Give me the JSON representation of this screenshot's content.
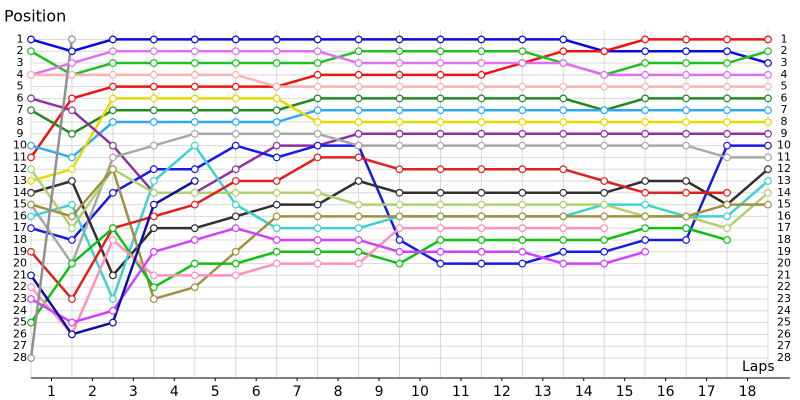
{
  "chart_data": {
    "type": "line",
    "y_label": "Position",
    "x_label": "Laps",
    "x": [
      0,
      1,
      2,
      3,
      4,
      5,
      6,
      7,
      8,
      9,
      10,
      11,
      12,
      13,
      14,
      15,
      16,
      17,
      18
    ],
    "xlim": [
      0,
      18
    ],
    "ylim": [
      29.7,
      0.2
    ],
    "grid": true,
    "xticks": [
      {
        "value": 0.5,
        "label": "1"
      },
      {
        "value": 1.5,
        "label": "2"
      },
      {
        "value": 2.5,
        "label": "3"
      },
      {
        "value": 3.5,
        "label": "4"
      },
      {
        "value": 4.5,
        "label": "5"
      },
      {
        "value": 5.5,
        "label": "6"
      },
      {
        "value": 6.5,
        "label": "7"
      },
      {
        "value": 7.5,
        "label": "8"
      },
      {
        "value": 8.5,
        "label": "9"
      },
      {
        "value": 9.5,
        "label": "10"
      },
      {
        "value": 10.5,
        "label": "11"
      },
      {
        "value": 11.5,
        "label": "12"
      },
      {
        "value": 12.5,
        "label": "13"
      },
      {
        "value": 13.5,
        "label": "14"
      },
      {
        "value": 14.5,
        "label": "15"
      },
      {
        "value": 15.5,
        "label": "16"
      },
      {
        "value": 16.5,
        "label": "17"
      },
      {
        "value": 17.5,
        "label": "18"
      }
    ],
    "yticks": [
      1,
      2,
      3,
      4,
      5,
      6,
      7,
      8,
      9,
      10,
      11,
      12,
      13,
      14,
      15,
      16,
      17,
      18,
      19,
      20,
      21,
      22,
      23,
      24,
      25,
      26,
      27,
      28
    ],
    "series": [
      {
        "color": "#0a0adc",
        "values": [
          1,
          2,
          1,
          1,
          1,
          1,
          1,
          1,
          1,
          1,
          1,
          1,
          1,
          1,
          2,
          2,
          2,
          2,
          3
        ]
      },
      {
        "color": "#f01010",
        "values": [
          11,
          6,
          5,
          5,
          5,
          5,
          5,
          4,
          4,
          4,
          4,
          4,
          3,
          2,
          2,
          1,
          1,
          1,
          1
        ]
      },
      {
        "color": "#20c020",
        "values": [
          2,
          4,
          3,
          3,
          3,
          3,
          3,
          3,
          2,
          2,
          2,
          2,
          2,
          3,
          4,
          3,
          3,
          3,
          2
        ]
      },
      {
        "color": "#e070f0",
        "values": [
          4,
          3,
          2,
          2,
          2,
          2,
          2,
          2,
          3,
          3,
          3,
          3,
          3,
          3,
          4,
          4,
          4,
          4,
          4
        ]
      },
      {
        "color": "#ffb0b0",
        "values": [
          4,
          4,
          4,
          4,
          4,
          4,
          5,
          5,
          5,
          5,
          5,
          5,
          5,
          5,
          5,
          5,
          5,
          5,
          5
        ]
      },
      {
        "color": "#208a20",
        "values": [
          7,
          9,
          7,
          7,
          7,
          7,
          7,
          6,
          6,
          6,
          6,
          6,
          6,
          6,
          7,
          6,
          6,
          6,
          6
        ]
      },
      {
        "color": "#30a8f8",
        "values": [
          10,
          11,
          8,
          8,
          8,
          8,
          8,
          7,
          7,
          7,
          7,
          7,
          7,
          7,
          7,
          7,
          7,
          7,
          7
        ]
      },
      {
        "color": "#e8d800",
        "values": [
          13,
          12,
          6,
          6,
          6,
          6,
          6,
          8,
          8,
          8,
          8,
          8,
          8,
          8,
          8,
          8,
          8,
          8,
          8
        ]
      },
      {
        "color": "#9030a0",
        "values": [
          6,
          7,
          10,
          14,
          14,
          12,
          10,
          10,
          9,
          9,
          9,
          9,
          9,
          9,
          9,
          9,
          9,
          9,
          9
        ]
      },
      {
        "color": "#1818e8",
        "values": [
          17,
          18,
          14,
          12,
          12,
          10,
          11,
          10,
          10,
          18,
          20,
          20,
          20,
          19,
          19,
          18,
          18,
          10,
          10
        ]
      },
      {
        "color": "#a8a8a8",
        "values": [
          15,
          20,
          11,
          10,
          9,
          9,
          9,
          9,
          10,
          10,
          10,
          10,
          10,
          10,
          10,
          10,
          10,
          11,
          11
        ]
      },
      {
        "color": "#303030",
        "values": [
          14,
          13,
          21,
          17,
          17,
          16,
          15,
          15,
          13,
          14,
          14,
          14,
          14,
          14,
          14,
          13,
          13,
          15,
          12
        ]
      },
      {
        "color": "#40d0d0",
        "values": [
          16,
          15,
          23,
          13,
          10,
          15,
          17,
          17,
          17,
          16,
          16,
          16,
          16,
          16,
          15,
          15,
          16,
          16,
          13
        ]
      },
      {
        "color": "#b0d070",
        "values": [
          12,
          17,
          12,
          14,
          14,
          14,
          14,
          14,
          15,
          15,
          15,
          15,
          15,
          15,
          15,
          16,
          16,
          17,
          14
        ]
      },
      {
        "color": "#a09040",
        "values": [
          15,
          16,
          12,
          23,
          22,
          19,
          16,
          16,
          16,
          16,
          16,
          16,
          16,
          16,
          16,
          16,
          16,
          15,
          15
        ]
      },
      {
        "color": "#e02020",
        "values": [
          19,
          23,
          17,
          16,
          15,
          13,
          13,
          11,
          11,
          12,
          12,
          12,
          12,
          12,
          13,
          14,
          14,
          14,
          null
        ]
      },
      {
        "color": "#10c010",
        "values": [
          25,
          20,
          17,
          22,
          20,
          20,
          19,
          19,
          19,
          20,
          18,
          18,
          18,
          18,
          18,
          17,
          17,
          18,
          null
        ]
      },
      {
        "color": "#ff90c0",
        "values": [
          22,
          26,
          18,
          21,
          21,
          21,
          20,
          20,
          20,
          17,
          17,
          17,
          17,
          17,
          17,
          null,
          null,
          null,
          null
        ]
      },
      {
        "color": "#d040ff",
        "values": [
          23,
          25,
          24,
          19,
          18,
          17,
          18,
          18,
          18,
          19,
          19,
          19,
          19,
          20,
          20,
          19,
          null,
          null,
          null
        ]
      },
      {
        "color": "#1010a0",
        "values": [
          21,
          26,
          25,
          15,
          13,
          null,
          null,
          null,
          null,
          null,
          null,
          null,
          null,
          null,
          null,
          null,
          null,
          null,
          null
        ]
      },
      {
        "color": "#909090",
        "values": [
          28,
          1,
          null,
          null,
          null,
          null,
          null,
          null,
          null,
          null,
          null,
          null,
          null,
          null,
          null,
          null,
          null,
          null,
          null
        ]
      }
    ]
  }
}
